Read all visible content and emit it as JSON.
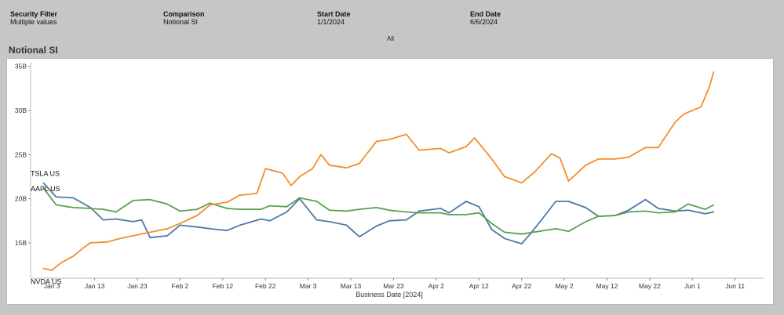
{
  "filters": {
    "security": {
      "label": "Security Filter",
      "value": "Multiple values"
    },
    "comparison": {
      "label": "Comparison",
      "value": "Notional SI"
    },
    "start": {
      "label": "Start Date",
      "value": "1/1/2024"
    },
    "end": {
      "label": "End Date",
      "value": "6/6/2024"
    },
    "all_label": "All"
  },
  "chart_title": "Notional SI",
  "colors": {
    "TSLA US": "#4e79a7",
    "AAPL US": "#59a14f",
    "NVDA US": "#f28e2b"
  },
  "chart_data": {
    "type": "line",
    "title": "Notional SI",
    "xlabel": "Business Date [2024]",
    "ylabel": "",
    "x_tick_labels": [
      "Jan 3",
      "Jan 13",
      "Jan 23",
      "Feb 2",
      "Feb 12",
      "Feb 22",
      "Mar 3",
      "Mar 13",
      "Mar 23",
      "Apr 2",
      "Apr 12",
      "Apr 22",
      "May 2",
      "May 12",
      "May 22",
      "Jun 1",
      "Jun 11"
    ],
    "y_tick_labels": [
      "15B",
      "20B",
      "25B",
      "30B",
      "35B"
    ],
    "ylim": [
      11,
      35.5
    ],
    "xlim": [
      "2023-12-29",
      "2024-06-14"
    ],
    "grid": false,
    "series": [
      {
        "name": "TSLA US",
        "x": [
          "2024-01-01",
          "2024-01-04",
          "2024-01-08",
          "2024-01-12",
          "2024-01-15",
          "2024-01-18",
          "2024-01-22",
          "2024-01-24",
          "2024-01-26",
          "2024-01-30",
          "2024-02-02",
          "2024-02-06",
          "2024-02-09",
          "2024-02-13",
          "2024-02-16",
          "2024-02-21",
          "2024-02-23",
          "2024-02-27",
          "2024-03-01",
          "2024-03-05",
          "2024-03-08",
          "2024-03-12",
          "2024-03-15",
          "2024-03-19",
          "2024-03-22",
          "2024-03-26",
          "2024-03-29",
          "2024-04-03",
          "2024-04-05",
          "2024-04-09",
          "2024-04-12",
          "2024-04-15",
          "2024-04-18",
          "2024-04-22",
          "2024-04-24",
          "2024-04-26",
          "2024-04-30",
          "2024-05-03",
          "2024-05-07",
          "2024-05-10",
          "2024-05-14",
          "2024-05-17",
          "2024-05-21",
          "2024-05-24",
          "2024-05-28",
          "2024-05-31",
          "2024-06-04",
          "2024-06-06"
        ],
        "values": [
          21.8,
          20.2,
          20.1,
          19.0,
          17.6,
          17.7,
          17.4,
          17.6,
          15.6,
          15.8,
          17.0,
          16.8,
          16.6,
          16.4,
          17.0,
          17.7,
          17.5,
          18.5,
          20.0,
          17.6,
          17.4,
          17.0,
          15.7,
          16.9,
          17.5,
          17.6,
          18.6,
          18.9,
          18.4,
          19.7,
          19.1,
          16.5,
          15.5,
          14.9,
          16.0,
          17.2,
          19.7,
          19.7,
          19.0,
          18.0,
          18.1,
          18.7,
          19.9,
          18.9,
          18.6,
          18.7,
          18.3,
          18.5
        ]
      },
      {
        "name": "AAPL US",
        "x": [
          "2024-01-01",
          "2024-01-04",
          "2024-01-08",
          "2024-01-12",
          "2024-01-15",
          "2024-01-18",
          "2024-01-22",
          "2024-01-26",
          "2024-01-30",
          "2024-02-02",
          "2024-02-06",
          "2024-02-09",
          "2024-02-13",
          "2024-02-16",
          "2024-02-21",
          "2024-02-23",
          "2024-02-27",
          "2024-03-01",
          "2024-03-05",
          "2024-03-08",
          "2024-03-12",
          "2024-03-15",
          "2024-03-19",
          "2024-03-22",
          "2024-03-26",
          "2024-03-29",
          "2024-04-03",
          "2024-04-05",
          "2024-04-09",
          "2024-04-12",
          "2024-04-15",
          "2024-04-18",
          "2024-04-22",
          "2024-04-26",
          "2024-04-30",
          "2024-05-03",
          "2024-05-07",
          "2024-05-10",
          "2024-05-14",
          "2024-05-17",
          "2024-05-21",
          "2024-05-24",
          "2024-05-28",
          "2024-05-31",
          "2024-06-04",
          "2024-06-06"
        ],
        "values": [
          21.2,
          19.3,
          19.0,
          18.9,
          18.8,
          18.5,
          19.8,
          19.9,
          19.4,
          18.6,
          18.8,
          19.5,
          18.9,
          18.8,
          18.8,
          19.2,
          19.1,
          20.1,
          19.7,
          18.7,
          18.6,
          18.8,
          19.0,
          18.7,
          18.5,
          18.4,
          18.4,
          18.2,
          18.2,
          18.4,
          17.2,
          16.2,
          16.0,
          16.3,
          16.6,
          16.3,
          17.4,
          18.0,
          18.1,
          18.5,
          18.6,
          18.4,
          18.5,
          19.4,
          18.8,
          19.3
        ]
      },
      {
        "name": "NVDA US",
        "x": [
          "2024-01-01",
          "2024-01-03",
          "2024-01-05",
          "2024-01-08",
          "2024-01-10",
          "2024-01-12",
          "2024-01-16",
          "2024-01-19",
          "2024-01-23",
          "2024-01-26",
          "2024-01-30",
          "2024-02-02",
          "2024-02-06",
          "2024-02-09",
          "2024-02-13",
          "2024-02-16",
          "2024-02-20",
          "2024-02-22",
          "2024-02-26",
          "2024-02-28",
          "2024-03-01",
          "2024-03-04",
          "2024-03-06",
          "2024-03-08",
          "2024-03-12",
          "2024-03-15",
          "2024-03-19",
          "2024-03-22",
          "2024-03-26",
          "2024-03-29",
          "2024-04-03",
          "2024-04-05",
          "2024-04-09",
          "2024-04-11",
          "2024-04-15",
          "2024-04-18",
          "2024-04-22",
          "2024-04-25",
          "2024-04-29",
          "2024-05-01",
          "2024-05-03",
          "2024-05-07",
          "2024-05-10",
          "2024-05-14",
          "2024-05-17",
          "2024-05-21",
          "2024-05-24",
          "2024-05-28",
          "2024-05-30",
          "2024-06-03",
          "2024-06-05",
          "2024-06-06"
        ],
        "values": [
          12.1,
          11.9,
          12.7,
          13.5,
          14.3,
          15.0,
          15.1,
          15.5,
          15.9,
          16.2,
          16.6,
          17.2,
          18.1,
          19.3,
          19.6,
          20.4,
          20.6,
          23.4,
          22.9,
          21.5,
          22.5,
          23.4,
          25.0,
          23.8,
          23.5,
          24.0,
          26.5,
          26.7,
          27.3,
          25.5,
          25.7,
          25.2,
          25.9,
          26.9,
          24.5,
          22.5,
          21.8,
          23.0,
          25.1,
          24.6,
          22.0,
          23.8,
          24.5,
          24.5,
          24.7,
          25.8,
          25.8,
          28.7,
          29.6,
          30.4,
          32.7,
          34.4
        ]
      }
    ]
  }
}
